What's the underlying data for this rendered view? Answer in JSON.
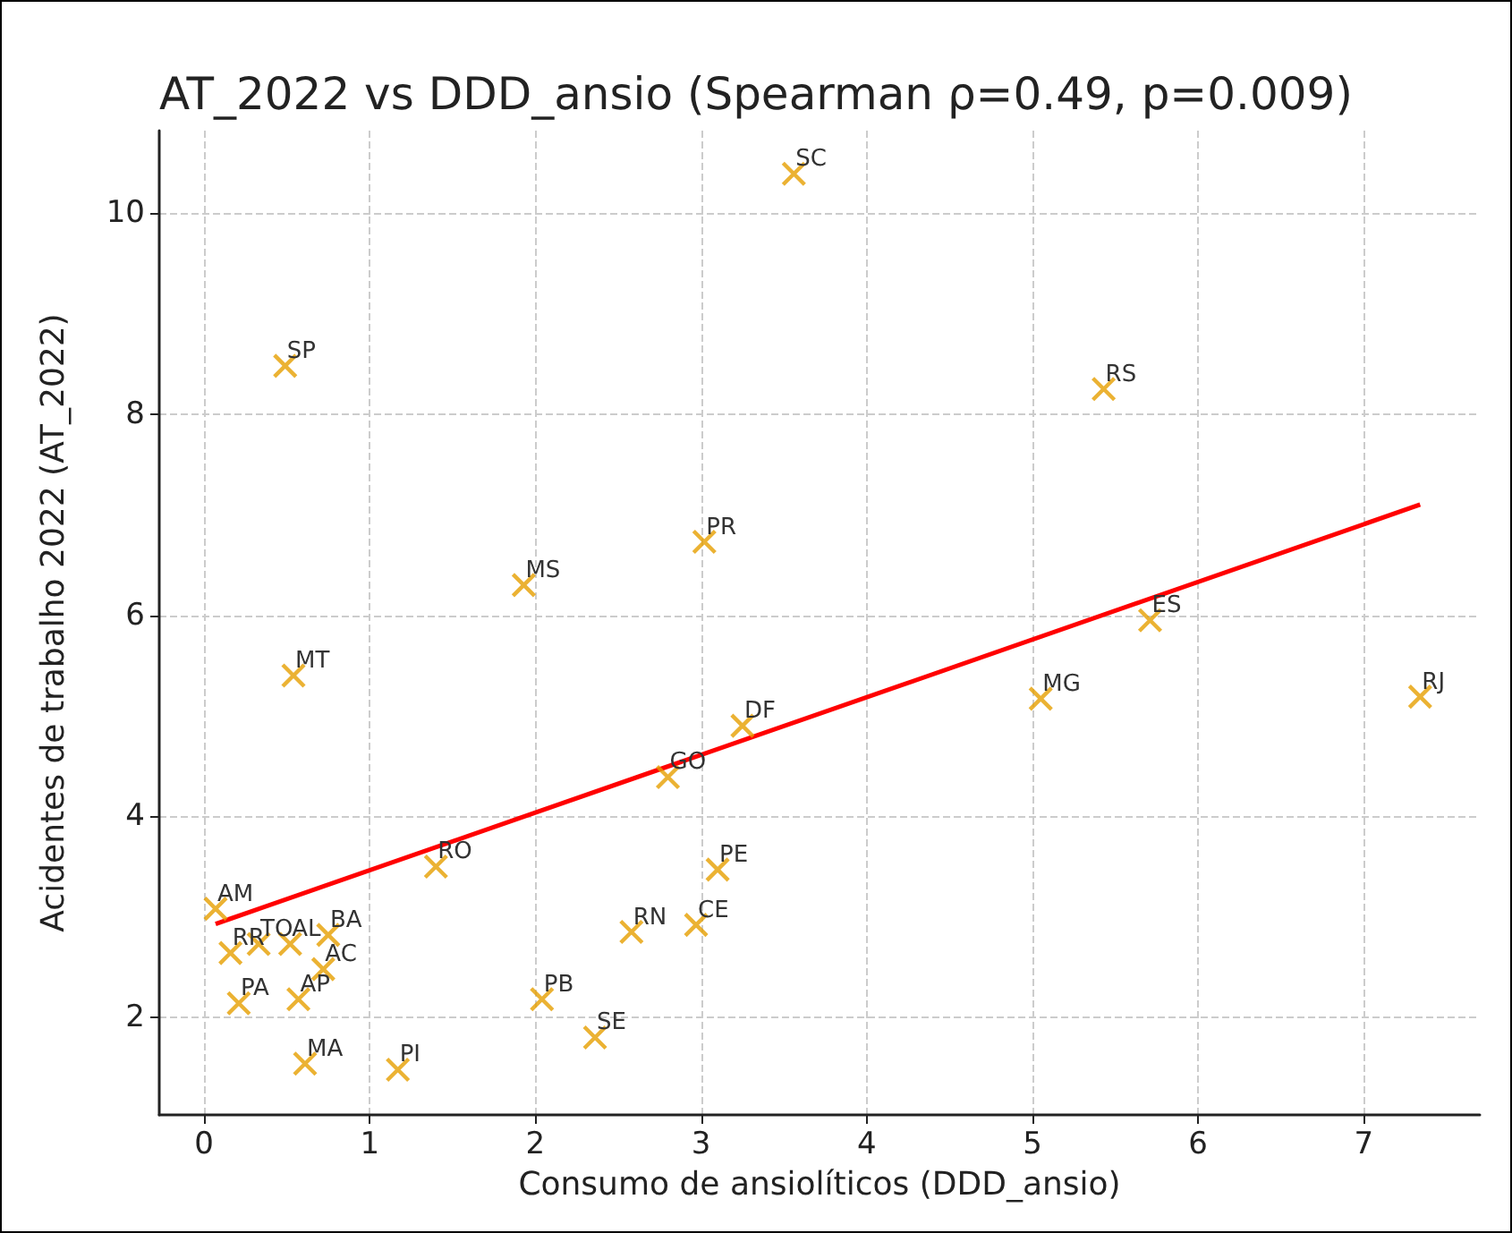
{
  "chart_data": {
    "type": "scatter",
    "title": "AT_2022 vs DDD_ansio (Spearman ρ=0.49, p=0.009)",
    "xlabel": "Consumo de ansiolíticos (DDD_ansio)",
    "ylabel": "Acidentes de trabalho 2022 (AT_2022)",
    "xlim": [
      -0.27,
      7.7
    ],
    "xticks": [
      0,
      1,
      2,
      3,
      4,
      5,
      6,
      7
    ],
    "ylim": [
      1.03,
      10.82
    ],
    "yticks": [
      2,
      4,
      6,
      8,
      10
    ],
    "grid": true,
    "marker": "cross",
    "series": [
      {
        "color": "#e69f00",
        "x": [
          3.56,
          0.49,
          5.43,
          3.02,
          1.93,
          0.54,
          5.71,
          5.05,
          7.34,
          3.25,
          2.8,
          1.4,
          3.1,
          0.07,
          2.58,
          2.97,
          0.75,
          0.52,
          0.33,
          0.16,
          0.72,
          0.21,
          0.57,
          2.04,
          2.36,
          0.61,
          1.17
        ],
        "values": [
          10.39,
          8.48,
          8.25,
          6.73,
          6.3,
          5.4,
          5.95,
          5.17,
          5.19,
          4.9,
          4.39,
          3.5,
          3.47,
          3.08,
          2.85,
          2.92,
          2.82,
          2.73,
          2.73,
          2.64,
          2.48,
          2.14,
          2.18,
          2.18,
          1.8,
          1.54,
          1.48
        ]
      },
      {
        "type": "line",
        "color": "#ff0000",
        "marker": "none",
        "line_style": "solid",
        "x": [
          0.07,
          7.34
        ],
        "values": [
          2.93,
          7.1
        ]
      }
    ],
    "annotations": [
      {
        "text": "SC",
        "x": 3.56,
        "y": 10.39
      },
      {
        "text": "SP",
        "x": 0.49,
        "y": 8.48
      },
      {
        "text": "RS",
        "x": 5.43,
        "y": 8.25
      },
      {
        "text": "PR",
        "x": 3.02,
        "y": 6.73
      },
      {
        "text": "MS",
        "x": 1.93,
        "y": 6.3
      },
      {
        "text": "MT",
        "x": 0.54,
        "y": 5.4
      },
      {
        "text": "ES",
        "x": 5.71,
        "y": 5.95
      },
      {
        "text": "MG",
        "x": 5.05,
        "y": 5.17
      },
      {
        "text": "RJ",
        "x": 7.34,
        "y": 5.19
      },
      {
        "text": "DF",
        "x": 3.25,
        "y": 4.9
      },
      {
        "text": "GO",
        "x": 2.8,
        "y": 4.39
      },
      {
        "text": "RO",
        "x": 1.4,
        "y": 3.5
      },
      {
        "text": "PE",
        "x": 3.1,
        "y": 3.47
      },
      {
        "text": "AM",
        "x": 0.07,
        "y": 3.08
      },
      {
        "text": "RN",
        "x": 2.58,
        "y": 2.85
      },
      {
        "text": "CE",
        "x": 2.97,
        "y": 2.92
      },
      {
        "text": "BA",
        "x": 0.75,
        "y": 2.82
      },
      {
        "text": "AL",
        "x": 0.52,
        "y": 2.73
      },
      {
        "text": "TO",
        "x": 0.33,
        "y": 2.73
      },
      {
        "text": "RR",
        "x": 0.16,
        "y": 2.64
      },
      {
        "text": "AC",
        "x": 0.72,
        "y": 2.48
      },
      {
        "text": "PA",
        "x": 0.21,
        "y": 2.14
      },
      {
        "text": "AP",
        "x": 0.57,
        "y": 2.18
      },
      {
        "text": "PB",
        "x": 2.04,
        "y": 2.18
      },
      {
        "text": "SE",
        "x": 2.36,
        "y": 1.8
      },
      {
        "text": "MA",
        "x": 0.61,
        "y": 1.54
      },
      {
        "text": "PI",
        "x": 1.17,
        "y": 1.48
      }
    ]
  }
}
